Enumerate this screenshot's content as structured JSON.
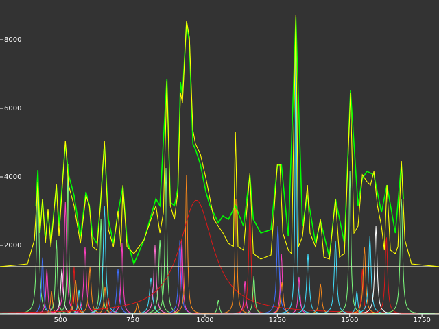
{
  "chart_data": {
    "type": "spectrum",
    "xlim": [
      291,
      1809
    ],
    "ylim": [
      -440,
      9160
    ],
    "xticks": [
      500,
      750,
      1000,
      1250,
      1500,
      1750
    ],
    "yticks": [
      2000,
      4000,
      6000,
      8000
    ],
    "baseline": 1380,
    "baseline_color": "#d8d8c0",
    "series": [
      {
        "color": "#ffff00",
        "x": [
          291,
          386,
          410,
          422,
          429,
          438,
          448,
          457,
          467,
          486,
          495,
          517,
          528,
          547,
          569,
          588,
          600,
          611,
          626,
          638,
          652,
          666,
          683,
          699,
          709,
          716,
          730,
          754,
          789,
          813,
          830,
          844,
          856,
          868,
          880,
          894,
          906,
          915,
          922,
          936,
          946,
          958,
          967,
          984,
          1003,
          1017,
          1031,
          1046,
          1062,
          1081,
          1098,
          1105,
          1114,
          1133,
          1155,
          1167,
          1193,
          1228,
          1250,
          1259,
          1269,
          1288,
          1299,
          1314,
          1323,
          1337,
          1354,
          1363,
          1382,
          1399,
          1411,
          1430,
          1451,
          1465,
          1482,
          1503,
          1515,
          1529,
          1544,
          1560,
          1572,
          1584,
          1596,
          1610,
          1620,
          1629,
          1641,
          1658,
          1667,
          1679,
          1691,
          1714,
          1809
        ],
        "values": [
          1380,
          1460,
          2160,
          3860,
          2360,
          3360,
          2060,
          3060,
          1960,
          3800,
          2260,
          5060,
          3760,
          3160,
          2060,
          3460,
          3160,
          1960,
          1860,
          3160,
          5060,
          2460,
          1960,
          3000,
          1960,
          3760,
          1960,
          1760,
          2160,
          2760,
          3160,
          2360,
          2960,
          6800,
          3160,
          2760,
          3560,
          6460,
          6160,
          8560,
          8060,
          5360,
          4960,
          4660,
          3960,
          3360,
          2760,
          2560,
          2360,
          2060,
          1960,
          5320,
          1960,
          1860,
          4100,
          1760,
          1600,
          1720,
          4360,
          4360,
          2360,
          1860,
          1760,
          8720,
          1960,
          2260,
          3760,
          2360,
          1960,
          2760,
          1660,
          1600,
          3360,
          1660,
          1760,
          6460,
          2360,
          2560,
          4060,
          3860,
          3760,
          4160,
          3160,
          2560,
          1860,
          3760,
          1860,
          1760,
          1960,
          4460,
          2160,
          1460,
          1380
        ]
      },
      {
        "color": "#00ff00",
        "x": [
          415,
          422,
          429,
          438,
          448,
          457,
          467,
          486,
          495,
          517,
          528,
          547,
          569,
          588,
          600,
          611,
          626,
          638,
          652,
          666,
          683,
          699,
          716,
          730,
          754,
          789,
          813,
          830,
          844,
          856,
          868,
          880,
          894,
          906,
          915,
          922,
          936,
          946,
          958,
          967,
          984,
          1003,
          1017,
          1031,
          1046,
          1062,
          1081,
          1105,
          1133,
          1155,
          1167,
          1193,
          1228,
          1250,
          1264,
          1288,
          1314,
          1337,
          1354,
          1382,
          1399,
          1430,
          1451,
          1482,
          1503,
          1529,
          1544,
          1560,
          1584,
          1610,
          1629,
          1658,
          1679,
          1686
        ],
        "values": [
          3160,
          4200,
          2360,
          3360,
          2160,
          3000,
          2060,
          3760,
          2560,
          4960,
          4060,
          3460,
          2260,
          3560,
          3160,
          2260,
          2060,
          3160,
          4960,
          2760,
          2060,
          2960,
          3720,
          2160,
          1460,
          2160,
          2860,
          3360,
          3160,
          5060,
          6860,
          3260,
          3160,
          3660,
          6760,
          6360,
          8520,
          7920,
          4960,
          4800,
          4360,
          3560,
          3160,
          2920,
          2660,
          2860,
          2760,
          3160,
          2560,
          4060,
          2760,
          2360,
          2460,
          4320,
          4360,
          2260,
          8660,
          2560,
          3460,
          2060,
          2720,
          1660,
          3360,
          2060,
          6520,
          3160,
          3960,
          4160,
          4060,
          2960,
          3760,
          2360,
          4400,
          3360
        ]
      }
    ],
    "components": [
      {
        "center": 422,
        "height": 3900,
        "width": 5,
        "color": "#7cfc7c"
      },
      {
        "center": 438,
        "height": 1660,
        "width": 4,
        "color": "#3f6fff"
      },
      {
        "center": 453,
        "height": 1300,
        "width": 4,
        "color": "#ff40c0"
      },
      {
        "center": 469,
        "height": 660,
        "width": 4,
        "color": "#ff8c1a"
      },
      {
        "center": 486,
        "height": 2160,
        "width": 4,
        "color": "#7cfc7c"
      },
      {
        "center": 505,
        "height": 1300,
        "width": 5,
        "color": "#ffffff"
      },
      {
        "center": 517,
        "height": 3260,
        "width": 5,
        "color": "#ff40c0"
      },
      {
        "center": 526,
        "height": 4360,
        "width": 3,
        "color": "#7cfc7c"
      },
      {
        "center": 547,
        "height": 1360,
        "width": 4,
        "color": "#e01818"
      },
      {
        "center": 552,
        "height": 1000,
        "width": 5,
        "color": "#ff8c1a"
      },
      {
        "center": 564,
        "height": 700,
        "width": 4,
        "color": "#40e0ff"
      },
      {
        "center": 585,
        "height": 1960,
        "width": 5,
        "color": "#ff40c0"
      },
      {
        "center": 602,
        "height": 1360,
        "width": 5,
        "color": "#ff8c1a"
      },
      {
        "center": 640,
        "height": 2760,
        "width": 4,
        "color": "#7cfc7c"
      },
      {
        "center": 652,
        "height": 3160,
        "width": 5,
        "color": "#40e0ff"
      },
      {
        "center": 654,
        "height": 800,
        "width": 4,
        "color": "#ff8c1a"
      },
      {
        "center": 666,
        "height": 460,
        "width": 4,
        "color": "#e01818"
      },
      {
        "center": 699,
        "height": 1320,
        "width": 5,
        "color": "#3f6fff"
      },
      {
        "center": 713,
        "height": 2060,
        "width": 4,
        "color": "#ff40c0"
      },
      {
        "center": 766,
        "height": 300,
        "width": 4,
        "color": "#ff8c1a"
      },
      {
        "center": 813,
        "height": 1060,
        "width": 6,
        "color": "#40e0ff"
      },
      {
        "center": 827,
        "height": 2000,
        "width": 5,
        "color": "#ff6fd0"
      },
      {
        "center": 844,
        "height": 2160,
        "width": 5,
        "color": "#7cfc7c"
      },
      {
        "center": 865,
        "height": 4260,
        "width": 4,
        "color": "#7cfc7c"
      },
      {
        "center": 913,
        "height": 2160,
        "width": 5,
        "color": "#3f6fff"
      },
      {
        "center": 920,
        "height": 2160,
        "width": 4,
        "color": "#ff40c0"
      },
      {
        "center": 936,
        "height": 4060,
        "width": 4,
        "color": "#ff8c1a"
      },
      {
        "center": 970,
        "height": 3320,
        "width": 70,
        "color": "#e01818"
      },
      {
        "center": 1046,
        "height": 400,
        "width": 4,
        "color": "#7cfc7c"
      },
      {
        "center": 1107,
        "height": 3360,
        "width": 4,
        "color": "#ff8c1a"
      },
      {
        "center": 1138,
        "height": 960,
        "width": 4,
        "color": "#ff40c0"
      },
      {
        "center": 1155,
        "height": 2960,
        "width": 5,
        "color": "#e01818"
      },
      {
        "center": 1169,
        "height": 1100,
        "width": 4,
        "color": "#7cfc7c"
      },
      {
        "center": 1252,
        "height": 2560,
        "width": 5,
        "color": "#3f6fff"
      },
      {
        "center": 1264,
        "height": 1760,
        "width": 4,
        "color": "#ff40c0"
      },
      {
        "center": 1266,
        "height": 920,
        "width": 5,
        "color": "#ff8c1a"
      },
      {
        "center": 1314,
        "height": 8360,
        "width": 3,
        "color": "#40e0ff"
      },
      {
        "center": 1325,
        "height": 1080,
        "width": 4,
        "color": "#ff40c0"
      },
      {
        "center": 1356,
        "height": 1760,
        "width": 5,
        "color": "#40e0ff"
      },
      {
        "center": 1399,
        "height": 880,
        "width": 5,
        "color": "#ff8c1a"
      },
      {
        "center": 1451,
        "height": 2120,
        "width": 5,
        "color": "#40e0ff"
      },
      {
        "center": 1501,
        "height": 4160,
        "width": 4,
        "color": "#7cfc7c"
      },
      {
        "center": 1525,
        "height": 660,
        "width": 4,
        "color": "#40e0ff"
      },
      {
        "center": 1544,
        "height": 1300,
        "width": 4,
        "color": "#e01818"
      },
      {
        "center": 1551,
        "height": 1960,
        "width": 5,
        "color": "#ff8c1a"
      },
      {
        "center": 1570,
        "height": 2260,
        "width": 5,
        "color": "#40e0ff"
      },
      {
        "center": 1591,
        "height": 2560,
        "width": 5,
        "color": "#ffffff"
      },
      {
        "center": 1627,
        "height": 2260,
        "width": 5,
        "color": "#e01818"
      },
      {
        "center": 1679,
        "height": 3360,
        "width": 5,
        "color": "#7cfc7c"
      }
    ]
  }
}
